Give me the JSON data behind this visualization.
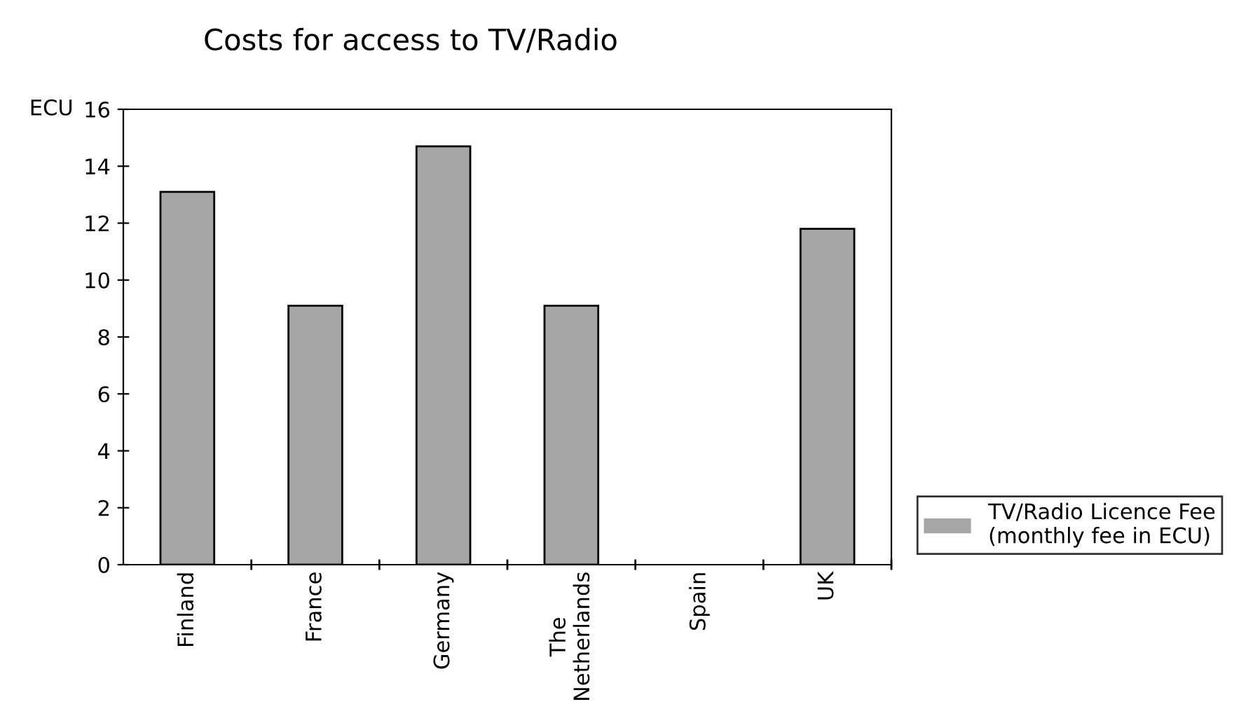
{
  "chart_data": {
    "type": "bar",
    "title": "Costs for access to TV/Radio",
    "ylabel": "ECU",
    "categories": [
      "Finland",
      "France",
      "Germany",
      "The\nNetherlands",
      "Spain",
      "UK"
    ],
    "series": [
      {
        "name": "TV/Radio Licence Fee\n(monthly fee in ECU)",
        "color": "#a6a6a6",
        "values": [
          13.1,
          9.1,
          14.7,
          9.1,
          null,
          11.8
        ]
      }
    ],
    "ylim": [
      0,
      16
    ],
    "yticks": [
      0,
      2,
      4,
      6,
      8,
      10,
      12,
      14,
      16
    ],
    "grid": false,
    "legend": "right"
  }
}
